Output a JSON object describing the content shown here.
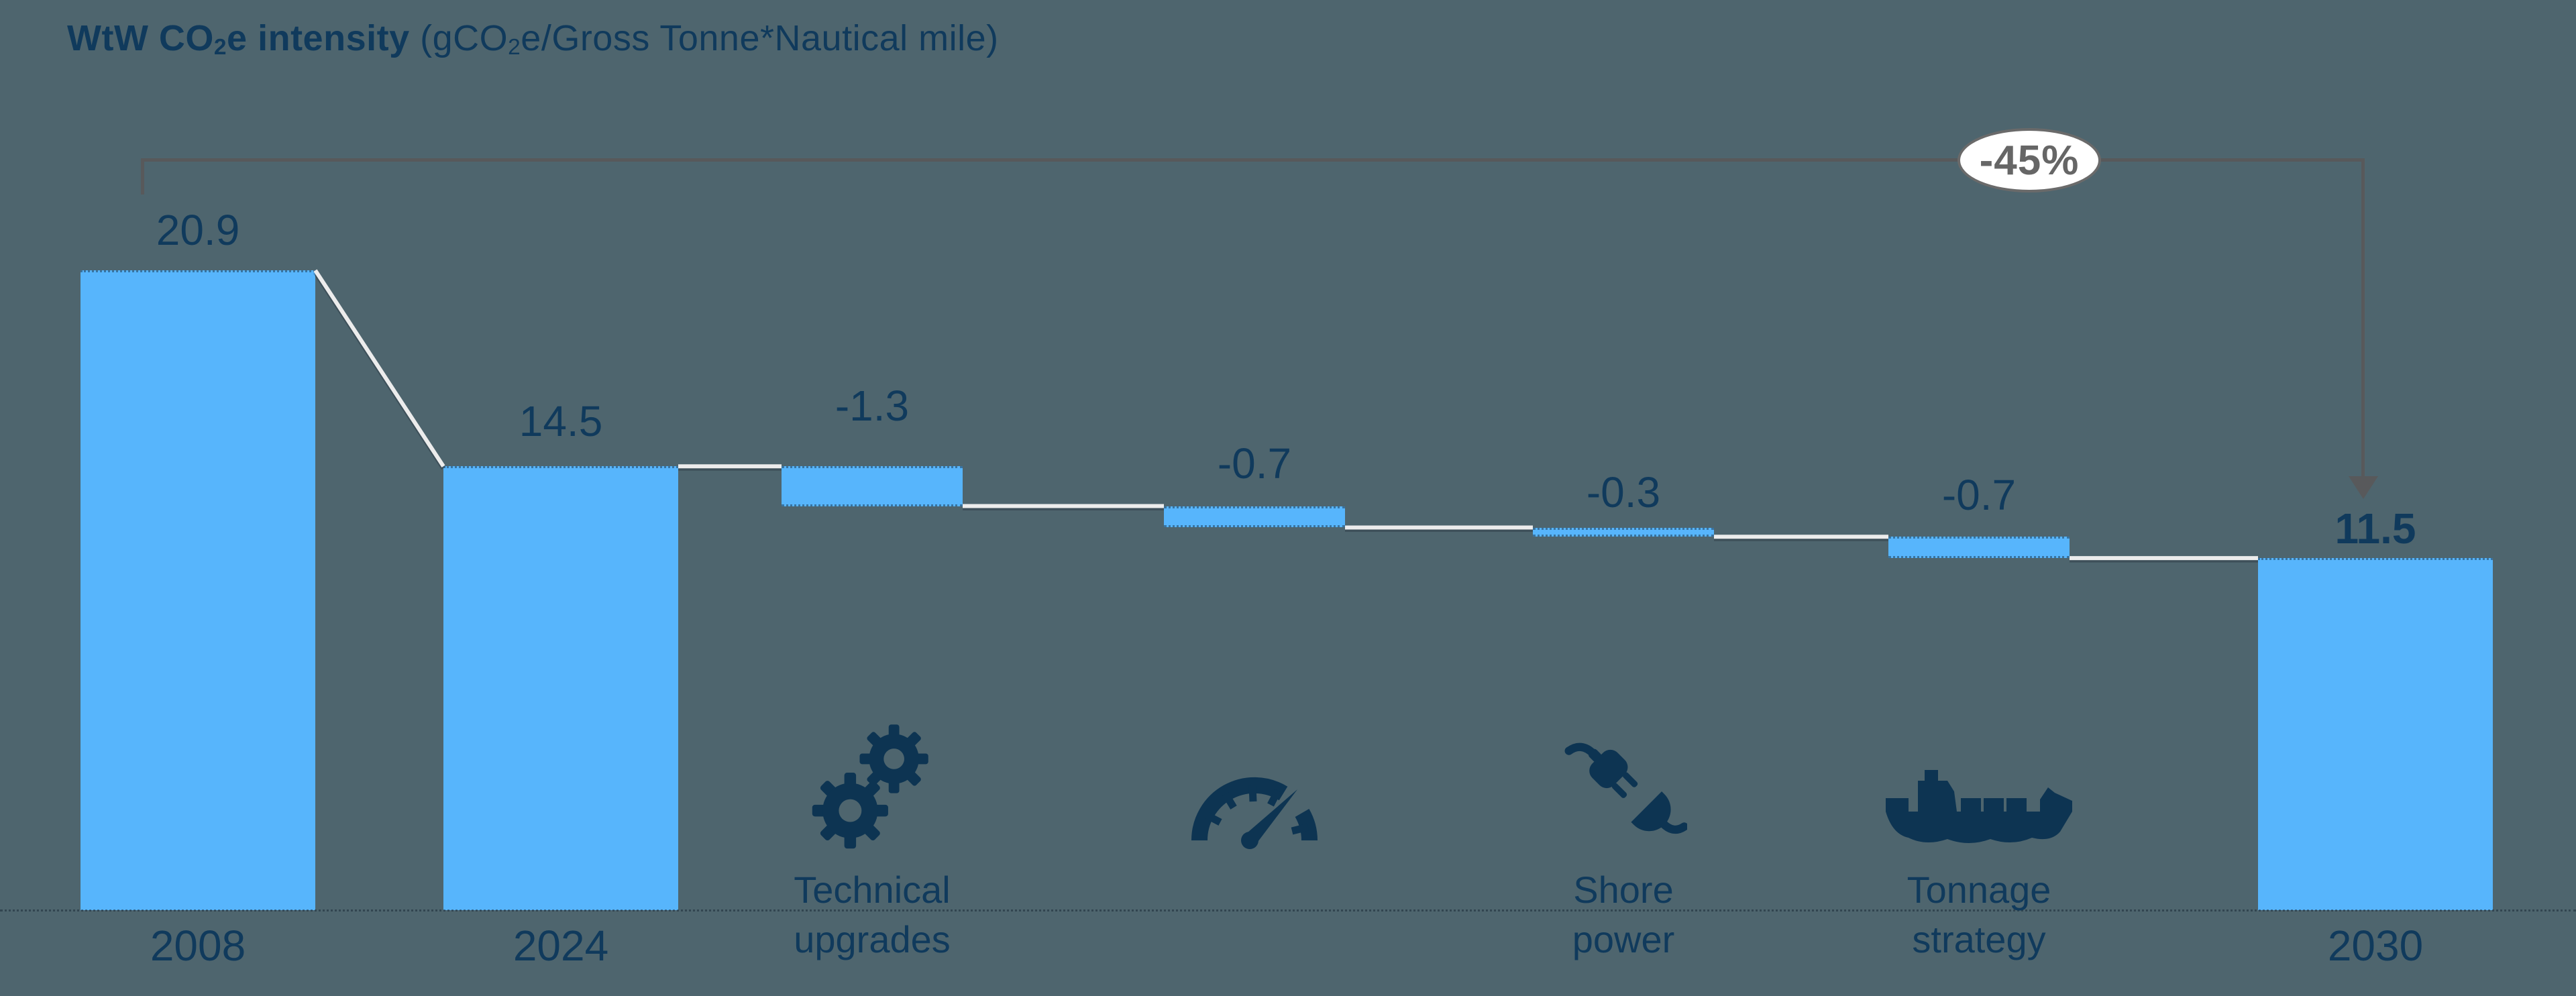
{
  "title": {
    "bold_prefix": "WtW CO",
    "bold_sub": "2",
    "bold_suffix": "e intensity",
    "unit_prefix": " (gCO",
    "unit_sub": "2",
    "unit_suffix": "e/Gross Tonne*Nautical mile)"
  },
  "colors": {
    "background": "#4e656e",
    "bar_fill": "#57b5fc",
    "text_navy": "#103a5c",
    "icon_navy": "#0d3452",
    "connector_white": "#ececec",
    "bracket_gray": "#58595b",
    "badge_border": "#6a6a6a",
    "badge_text": "#666666",
    "badge_fill": "#ffffff"
  },
  "chart_data": {
    "type": "bar",
    "subtype": "waterfall",
    "title": "WtW CO2e intensity",
    "ylabel": "gCO2e/Gross Tonne*Nautical mile",
    "ylim": [
      0,
      20.9
    ],
    "grid": false,
    "legend": "none",
    "categories": [
      "2008",
      "2024",
      "Technical upgrades",
      "",
      "Shore power",
      "Tonnage strategy",
      "2030"
    ],
    "values": [
      20.9,
      14.5,
      -1.3,
      -0.7,
      -0.3,
      -0.7,
      11.5
    ],
    "steps": [
      {
        "id": "2008",
        "kind": "total",
        "value": 20.9,
        "value_label": "20.9",
        "axis_label": "2008",
        "bold_value": false
      },
      {
        "id": "2024",
        "kind": "total",
        "value": 14.5,
        "value_label": "14.5",
        "axis_label": "2024",
        "bold_value": false
      },
      {
        "id": "technical-upgrades",
        "kind": "delta",
        "value": -1.3,
        "value_label": "-1.3",
        "icon": "gears-icon",
        "category_lines": [
          "Technical",
          "upgrades"
        ]
      },
      {
        "id": "speed",
        "kind": "delta",
        "value": -0.7,
        "value_label": "-0.7",
        "icon": "speedometer-icon",
        "category_lines": []
      },
      {
        "id": "shore-power",
        "kind": "delta",
        "value": -0.3,
        "value_label": "-0.3",
        "icon": "plug-icon",
        "category_lines": [
          "Shore",
          "power"
        ]
      },
      {
        "id": "tonnage-strategy",
        "kind": "delta",
        "value": -0.7,
        "value_label": "-0.7",
        "icon": "ship-icon",
        "category_lines": [
          "Tonnage",
          "strategy"
        ]
      },
      {
        "id": "2030",
        "kind": "total",
        "value": 11.5,
        "value_label": "11.5",
        "axis_label": "2030",
        "bold_value": true
      }
    ],
    "annotation": {
      "text": "-45%",
      "from": "2008",
      "to": "2030",
      "change_percent": -45
    }
  }
}
